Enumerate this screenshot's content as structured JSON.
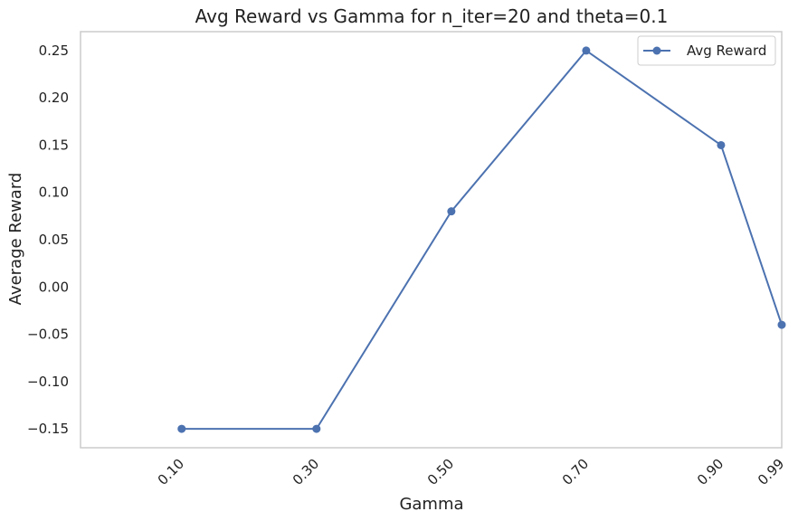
{
  "chart_data": {
    "type": "line",
    "title": "Avg Reward vs Gamma for n_iter=20 and theta=0.1",
    "xlabel": "Gamma",
    "ylabel": "Average Reward",
    "x": [
      0.1,
      0.3,
      0.5,
      0.7,
      0.9,
      0.99
    ],
    "x_tick_labels": [
      "0.10",
      "0.30",
      "0.50",
      "0.70",
      "0.90",
      "0.99"
    ],
    "series": [
      {
        "name": "Avg Reward",
        "color": "#4c72b0",
        "marker": "circle",
        "values": [
          -0.15,
          -0.15,
          0.08,
          0.25,
          0.15,
          -0.04
        ]
      }
    ],
    "xlim": [
      -0.05,
      0.99
    ],
    "ylim": [
      -0.17,
      0.27
    ],
    "y_ticks": [
      -0.15,
      -0.1,
      -0.05,
      0.0,
      0.05,
      0.1,
      0.15,
      0.2,
      0.25
    ],
    "y_tick_labels": [
      "−0.15",
      "−0.10",
      "−0.05",
      "0.00",
      "0.05",
      "0.10",
      "0.15",
      "0.20",
      "0.25"
    ],
    "grid": false,
    "legend_position": "top-right",
    "x_tick_rotation": 45
  }
}
